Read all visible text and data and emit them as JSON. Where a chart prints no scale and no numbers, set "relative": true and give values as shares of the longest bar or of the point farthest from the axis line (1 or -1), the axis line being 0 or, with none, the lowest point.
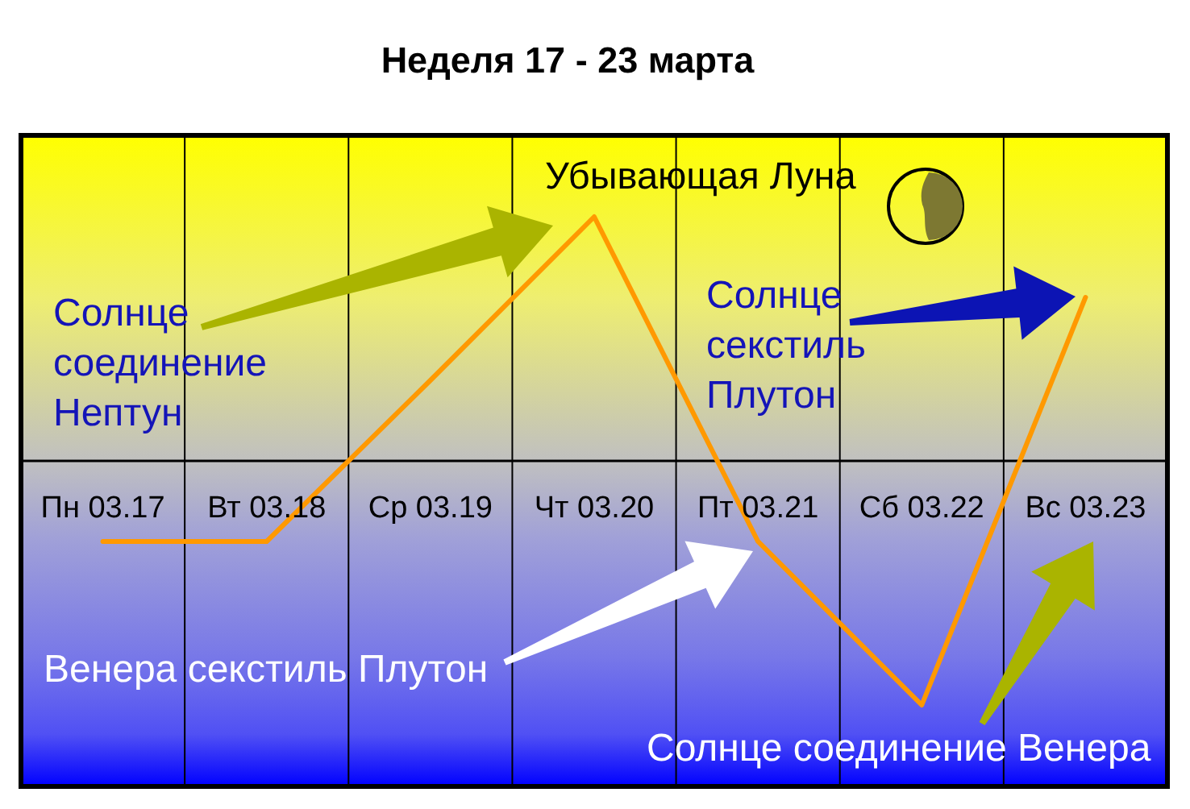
{
  "chart_data": {
    "type": "line",
    "title": "Неделя 17 - 23 марта",
    "categories": [
      "Пн 03.17",
      "Вт 03.18",
      "Ср 03.19",
      "Чт 03.20",
      "Пт 03.21",
      "Сб 03.22",
      "Вс 03.23"
    ],
    "series": [
      {
        "color": "#ff9900",
        "values": [
          -0.33,
          -0.33,
          0.33,
          1,
          -0.33,
          -1,
          0.67
        ]
      }
    ],
    "relative": true,
    "grid": "x",
    "line_style": "solid",
    "annotations": [
      "Убывающая Луна",
      "Солнце соединение Нептун",
      "Солнце секстиль Плутон",
      "Венера секстиль Плутон",
      "Солнце соединение Венера"
    ]
  }
}
